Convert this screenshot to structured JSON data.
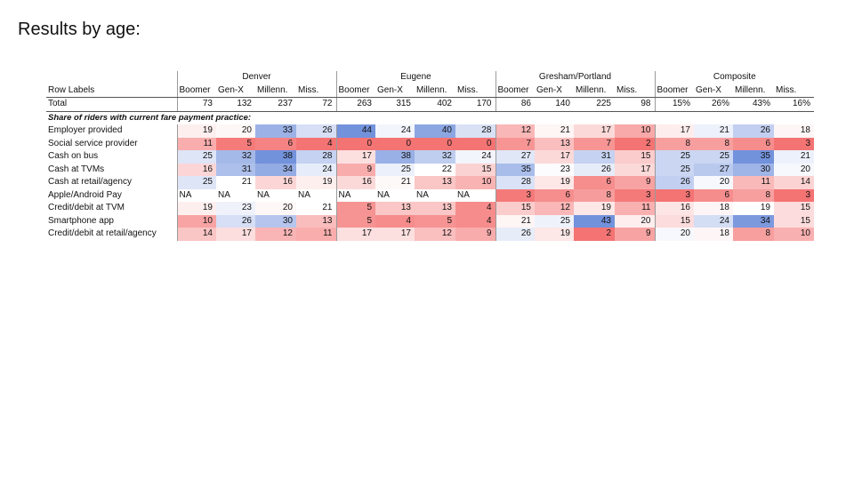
{
  "title": "Results by age:",
  "table": {
    "group_headers": [
      "Denver",
      "Eugene",
      "Gresham/Portland",
      "Composite"
    ],
    "row_label_header": "Row Labels",
    "sub_headers": [
      "Boomer",
      "Gen-X",
      "Millenn.",
      "Miss."
    ],
    "total_row": {
      "label": "Total",
      "values": [
        "73",
        "132",
        "237",
        "72",
        "263",
        "315",
        "402",
        "170",
        "86",
        "140",
        "225",
        "98",
        "15%",
        "26%",
        "43%",
        "16%"
      ]
    },
    "section_label": "Share of riders with current fare payment practice:",
    "rows": [
      {
        "label": "Employer provided",
        "values": [
          "19",
          "20",
          "33",
          "26",
          "44",
          "24",
          "40",
          "28",
          "12",
          "21",
          "17",
          "10",
          "17",
          "21",
          "26",
          "18"
        ]
      },
      {
        "label": "Social service provider",
        "values": [
          "11",
          "5",
          "6",
          "4",
          "0",
          "0",
          "0",
          "0",
          "7",
          "13",
          "7",
          "2",
          "8",
          "8",
          "6",
          "3"
        ]
      },
      {
        "label": "Cash on bus",
        "values": [
          "25",
          "32",
          "38",
          "28",
          "17",
          "38",
          "32",
          "24",
          "27",
          "17",
          "31",
          "15",
          "25",
          "25",
          "35",
          "21"
        ]
      },
      {
        "label": "Cash at TVMs",
        "values": [
          "16",
          "31",
          "34",
          "24",
          "9",
          "25",
          "22",
          "15",
          "35",
          "23",
          "26",
          "17",
          "25",
          "27",
          "30",
          "20"
        ]
      },
      {
        "label": "Cash at retail/agency",
        "values": [
          "25",
          "21",
          "16",
          "19",
          "16",
          "21",
          "13",
          "10",
          "28",
          "19",
          "6",
          "9",
          "26",
          "20",
          "11",
          "14"
        ]
      },
      {
        "label": "Apple/Android Pay",
        "values": [
          "NA",
          "NA",
          "NA",
          "NA",
          "NA",
          "NA",
          "NA",
          "NA",
          "3",
          "6",
          "8",
          "3",
          "3",
          "6",
          "8",
          "3"
        ]
      },
      {
        "label": "Credit/debit at TVM",
        "values": [
          "19",
          "23",
          "20",
          "21",
          "5",
          "13",
          "13",
          "4",
          "15",
          "12",
          "19",
          "11",
          "16",
          "18",
          "19",
          "15"
        ]
      },
      {
        "label": "Smartphone app",
        "values": [
          "10",
          "26",
          "30",
          "13",
          "5",
          "4",
          "5",
          "4",
          "21",
          "25",
          "43",
          "20",
          "15",
          "24",
          "34",
          "15"
        ]
      },
      {
        "label": "Credit/debit at retail/agency",
        "values": [
          "14",
          "17",
          "12",
          "11",
          "17",
          "17",
          "12",
          "9",
          "26",
          "19",
          "2",
          "9",
          "20",
          "18",
          "8",
          "10"
        ]
      }
    ]
  },
  "colors": {
    "high": "#5a7fd6",
    "mid": "#ffffff",
    "low": "#f25a5a",
    "text": "#111111",
    "na": "#ffffff"
  }
}
